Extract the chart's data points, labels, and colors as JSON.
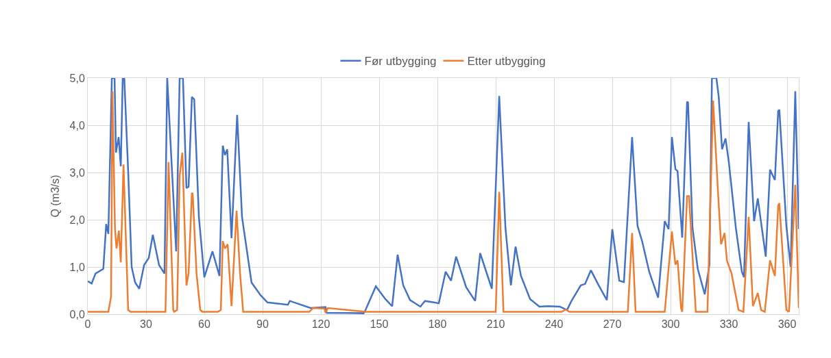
{
  "chart_data": {
    "type": "line",
    "ylabel": "Q (m3/s)",
    "xlim": [
      0,
      366
    ],
    "xticks": [
      0,
      30,
      60,
      90,
      120,
      150,
      180,
      210,
      240,
      270,
      300,
      330,
      360
    ],
    "ylim": [
      0,
      5
    ],
    "yticks": [
      {
        "value": 0,
        "label": "0,0"
      },
      {
        "value": 1,
        "label": "1,0"
      },
      {
        "value": 2,
        "label": "2,0"
      },
      {
        "value": 3,
        "label": "3,0"
      },
      {
        "value": 4,
        "label": "4,0"
      },
      {
        "value": 5,
        "label": "5,0"
      }
    ],
    "grid": true,
    "legend": "top",
    "marker": "none",
    "line_style": "solid",
    "series": [
      {
        "name": "Før utbygging",
        "color": "#4472c4",
        "x": [
          0,
          2,
          4,
          8,
          9.5,
          10.6,
          12.4,
          13.8,
          14.5,
          15.9,
          17,
          18,
          18.8,
          20.8,
          22.6,
          24.4,
          26.5,
          29,
          31.4,
          33.5,
          36.7,
          39.5,
          40.9,
          45.5,
          47.3,
          49,
          50.8,
          51.9,
          53.6,
          54.8,
          57.2,
          60,
          64.2,
          67.8,
          69.5,
          70.6,
          71.8,
          74,
          76.9,
          79.4,
          84.3,
          89,
          92.5,
          103,
          104,
          114.7,
          122.4,
          123,
          142,
          143,
          148.3,
          153.2,
          156.7,
          159.5,
          162.4,
          165.9,
          171.2,
          173.6,
          178.2,
          180.7,
          184.2,
          187,
          189.6,
          194.8,
          199.4,
          202,
          208,
          211.8,
          215,
          217.8,
          220.2,
          223,
          227.7,
          232.5,
          237,
          243,
          246.7,
          249,
          253.8,
          256,
          259,
          263,
          267.2,
          270,
          273.6,
          276,
          280.2,
          283,
          285.4,
          289,
          293.6,
          297,
          299,
          300.7,
          302.5,
          303.6,
          306,
          308.5,
          309,
          311.3,
          314,
          317.6,
          320,
          321.3,
          323.6,
          324.8,
          326.5,
          328.3,
          330,
          333.6,
          336.7,
          337.8,
          340.2,
          343,
          344.9,
          349,
          351.2,
          353.7,
          355.4,
          356,
          359.6,
          361.8,
          364.2,
          366
        ],
        "values": [
          0.7,
          0.65,
          0.86,
          0.96,
          1.91,
          1.7,
          5,
          5,
          3.42,
          3.75,
          3.13,
          5,
          5,
          3.03,
          1.0,
          0.67,
          0.54,
          1.04,
          1.19,
          1.68,
          1.04,
          0.86,
          5,
          1.33,
          5,
          5,
          2.67,
          2.7,
          4.6,
          4.55,
          2.06,
          0.78,
          1.33,
          0.81,
          3.57,
          3.37,
          3.49,
          1.61,
          4.22,
          2.06,
          0.67,
          0.4,
          0.25,
          0.2,
          0.28,
          0.13,
          0.15,
          0.03,
          0.02,
          0.09,
          0.59,
          0.32,
          0.17,
          1.26,
          0.61,
          0.3,
          0.16,
          0.28,
          0.25,
          0.23,
          0.9,
          0.71,
          1.22,
          0.57,
          0.28,
          1.29,
          0.54,
          4.62,
          1.83,
          0.61,
          1.43,
          0.81,
          0.32,
          0.16,
          0.17,
          0.16,
          0.09,
          0.28,
          0.61,
          0.64,
          0.93,
          0.61,
          0.3,
          1.8,
          0.71,
          0.68,
          3.75,
          1.87,
          1.54,
          0.9,
          0.35,
          1.97,
          1.8,
          3.75,
          3.07,
          3.03,
          1.62,
          4.5,
          4.48,
          1.83,
          0.96,
          0.42,
          1.04,
          5,
          5,
          4.6,
          3.49,
          3.72,
          3.22,
          1.83,
          0.9,
          0.78,
          4.07,
          1.97,
          2.45,
          1.22,
          3.06,
          2.84,
          4.3,
          4.33,
          1.87,
          1.0,
          4.72,
          1.8
        ]
      },
      {
        "name": "Etter utbygging",
        "color": "#ed7d31",
        "x": [
          0,
          10.6,
          12,
          12.7,
          14,
          14.8,
          16,
          17,
          18.4,
          20.8,
          22,
          40,
          41.6,
          44,
          44.5,
          46,
          47.3,
          48.7,
          50.8,
          51.9,
          53.6,
          54,
          56,
          57.9,
          59,
          67,
          68.5,
          69.5,
          70.6,
          72,
          74,
          76.6,
          78.4,
          80,
          114,
          115.9,
          121.8,
          122.4,
          123.6,
          133.6,
          140.7,
          143,
          210,
          211.8,
          214,
          244,
          246,
          248,
          278,
          280.2,
          282,
          297,
          300.7,
          302.5,
          303.6,
          305.4,
          306,
          308.5,
          309.5,
          313,
          319,
          321.9,
          324.4,
          326,
          327.8,
          329,
          331.4,
          335,
          337.5,
          340.2,
          342.4,
          344.9,
          346.6,
          348.5,
          351.2,
          353.7,
          355.4,
          356,
          359.6,
          361,
          364.2,
          366
        ],
        "values": [
          0.05,
          0.05,
          0.37,
          4.72,
          1.83,
          1.39,
          1.77,
          1.1,
          3.17,
          0.09,
          0.05,
          0.05,
          3.22,
          0.09,
          0.05,
          0.09,
          2.93,
          3.42,
          0.61,
          0.86,
          2.57,
          2.55,
          0.86,
          0.09,
          0.05,
          0.05,
          0.09,
          1.55,
          1.39,
          1.48,
          0.17,
          2.19,
          0.86,
          0.05,
          0.05,
          0.13,
          0.12,
          0.03,
          0.13,
          0.09,
          0.06,
          0.05,
          0.05,
          2.59,
          0.05,
          0.05,
          0.1,
          0.05,
          0.05,
          1.72,
          0.05,
          0.05,
          1.75,
          1.05,
          1.14,
          0.13,
          0.05,
          2.5,
          2.5,
          0.05,
          0.05,
          4.52,
          2.6,
          1.48,
          1.72,
          1.14,
          0.86,
          0.09,
          0.05,
          2.06,
          0.17,
          0.45,
          0.09,
          0.05,
          1.14,
          0.81,
          2.3,
          2.35,
          0.09,
          0.05,
          2.74,
          0.13
        ]
      }
    ]
  }
}
